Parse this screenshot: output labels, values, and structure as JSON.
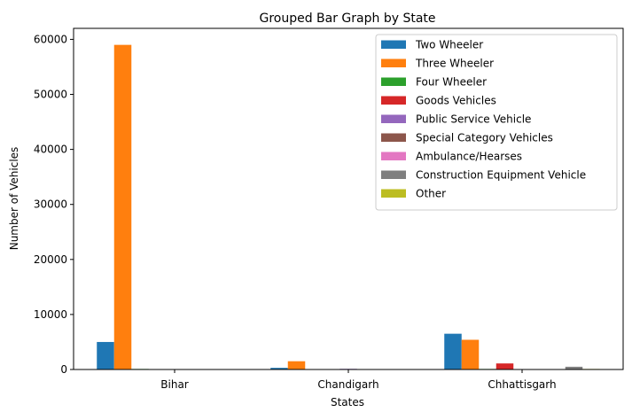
{
  "chart_data": {
    "type": "bar",
    "title": "Grouped Bar Graph by State",
    "xlabel": "States",
    "ylabel": "Number of Vehicles",
    "categories": [
      "Bihar",
      "Chandigarh",
      "Chhattisgarh"
    ],
    "ylim": [
      0,
      62000
    ],
    "yticks": [
      0,
      10000,
      20000,
      30000,
      40000,
      50000,
      60000
    ],
    "grid": false,
    "legend_position": "top-right",
    "series": [
      {
        "name": "Two Wheeler",
        "color": "#1f77b4",
        "values": [
          5000,
          300,
          6500
        ]
      },
      {
        "name": "Three Wheeler",
        "color": "#ff7f0e",
        "values": [
          59000,
          1500,
          5400
        ]
      },
      {
        "name": "Four Wheeler",
        "color": "#2ca02c",
        "values": [
          100,
          80,
          100
        ]
      },
      {
        "name": "Goods Vehicles",
        "color": "#d62728",
        "values": [
          20,
          30,
          1100
        ]
      },
      {
        "name": "Public Service Vehicle",
        "color": "#9467bd",
        "values": [
          10,
          120,
          30
        ]
      },
      {
        "name": "Special Category Vehicles",
        "color": "#8c564b",
        "values": [
          5,
          10,
          10
        ]
      },
      {
        "name": "Ambulance/Hearses",
        "color": "#e377c2",
        "values": [
          5,
          5,
          10
        ]
      },
      {
        "name": "Construction Equipment Vehicle",
        "color": "#7f7f7f",
        "values": [
          10,
          10,
          500
        ]
      },
      {
        "name": "Other",
        "color": "#bcbd22",
        "values": [
          5,
          10,
          100
        ]
      }
    ]
  }
}
